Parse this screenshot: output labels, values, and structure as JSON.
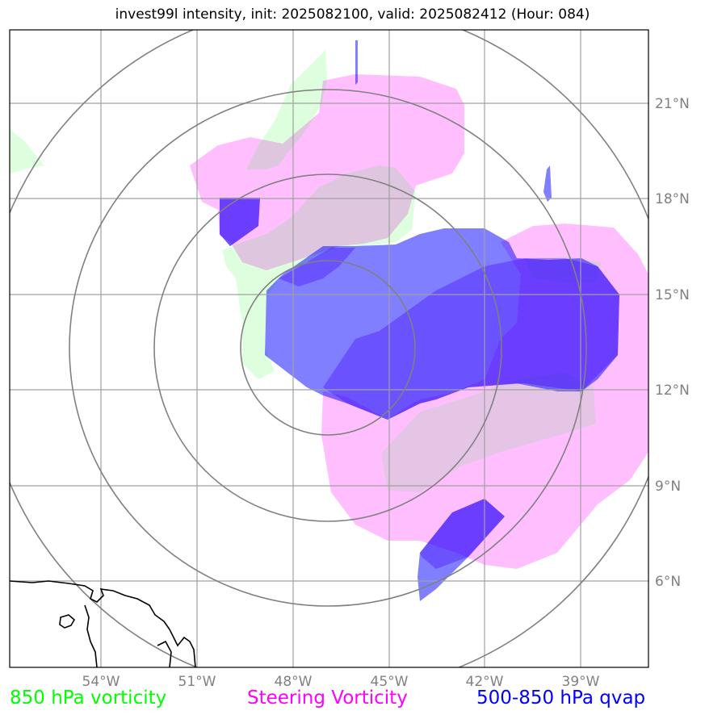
{
  "title": "invest99l intensity, init: 2025082100, valid: 2025082412 (Hour: 084)",
  "map": {
    "lon_range": [
      -57,
      -37
    ],
    "lat_range": [
      3,
      23
    ],
    "lon_ticks": [
      {
        "lon": -54,
        "label": "54°W"
      },
      {
        "lon": -51,
        "label": "51°W"
      },
      {
        "lon": -48,
        "label": "48°W"
      },
      {
        "lon": -45,
        "label": "45°W"
      },
      {
        "lon": -42,
        "label": "42°W"
      },
      {
        "lon": -39,
        "label": "39°W"
      }
    ],
    "lat_ticks": [
      {
        "lat": 21,
        "label": "21°N"
      },
      {
        "lat": 18,
        "label": "18°N"
      },
      {
        "lat": 15,
        "label": "15°N"
      },
      {
        "lat": 12,
        "label": "12°N"
      },
      {
        "lat": 9,
        "label": "9°N"
      },
      {
        "lat": 6,
        "label": "6°N"
      }
    ],
    "range_rings": {
      "center_lon": -47,
      "center_lat": 13.5,
      "count": 4
    },
    "layers": [
      {
        "name": "850 hPa vorticity",
        "color": "#00ff00"
      },
      {
        "name": "Steering Vorticity",
        "color": "#ff00ff"
      },
      {
        "name": "500-850 hPa qvap",
        "color": "#0000ff"
      }
    ]
  },
  "legend": {
    "vort850": "850 hPa vorticity",
    "steering": "Steering Vorticity",
    "qvap": "500-850 hPa qvap"
  }
}
